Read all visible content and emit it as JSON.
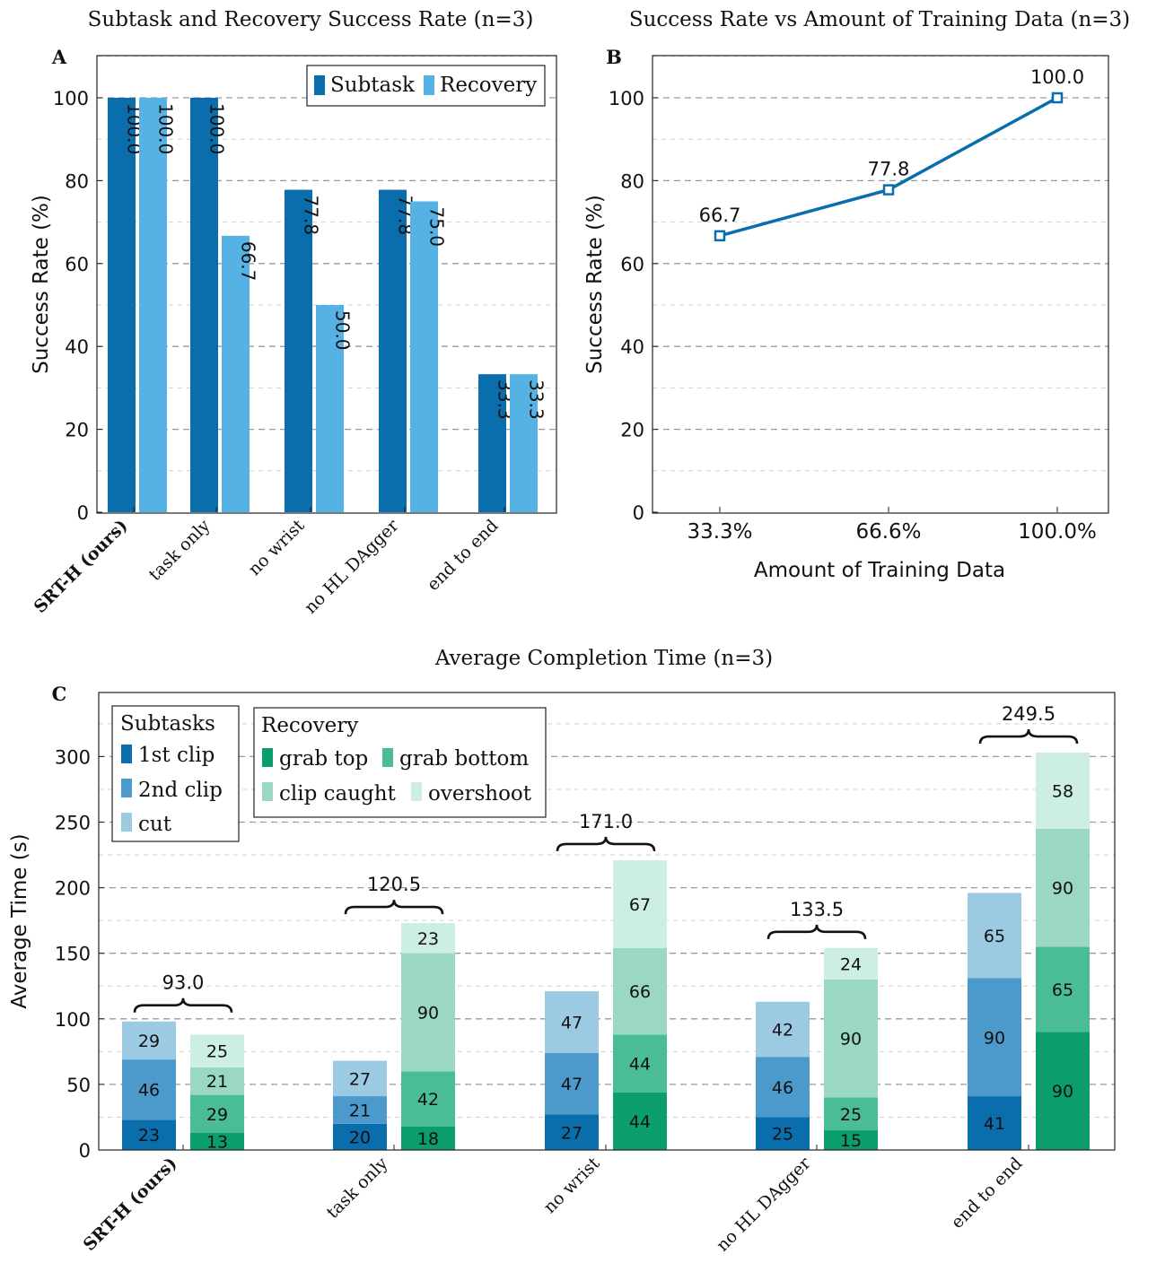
{
  "chart_data": [
    {
      "panel": "A",
      "type": "bar",
      "title": "Subtask and Recovery Success Rate (n=3)",
      "ylabel": "Success Rate (%)",
      "ylim": [
        0,
        110
      ],
      "yticks": [
        0,
        20,
        40,
        60,
        80,
        100
      ],
      "grid": true,
      "legend": "top-right",
      "categories": [
        "SRT-H (ours)",
        "task only",
        "no wrist",
        "no HL DAgger",
        "end to end"
      ],
      "series": [
        {
          "name": "Subtask",
          "color": "#0a6eac",
          "values": [
            100.0,
            100.0,
            77.8,
            77.8,
            33.3
          ],
          "labels": [
            "100.0",
            "100.0",
            "77.8",
            "77.8",
            "33.3"
          ]
        },
        {
          "name": "Recovery",
          "color": "#56b2e4",
          "values": [
            100.0,
            66.7,
            50.0,
            75.0,
            33.3
          ],
          "labels": [
            "100.0",
            "66.7",
            "50.0",
            "75.0",
            "33.3"
          ]
        }
      ]
    },
    {
      "panel": "B",
      "type": "line",
      "title": "Success Rate vs Amount of Training Data (n=3)",
      "xlabel": "Amount of Training Data",
      "ylabel": "Success Rate (%)",
      "ylim": [
        0,
        110
      ],
      "yticks": [
        0,
        20,
        40,
        60,
        80,
        100
      ],
      "grid": true,
      "x": [
        "33.3%",
        "66.6%",
        "100.0%"
      ],
      "series": [
        {
          "color": "#0a6eac",
          "values": [
            66.7,
            77.8,
            100.0
          ],
          "labels": [
            "66.7",
            "77.8",
            "100.0"
          ]
        }
      ]
    },
    {
      "panel": "C",
      "type": "bar",
      "title": "Average Completion Time (n=3)",
      "ylabel": "Average Time (s)",
      "ylim": [
        0,
        340
      ],
      "yticks": [
        0,
        50,
        100,
        150,
        200,
        250,
        300
      ],
      "grid": true,
      "categories": [
        "SRT-H (ours)",
        "task only",
        "no wrist",
        "no HL DAgger",
        "end to end"
      ],
      "totals": [
        "93.0",
        "120.5",
        "171.0",
        "133.5",
        "249.5"
      ],
      "legend_titles": {
        "subtasks": "Subtasks",
        "recovery": "Recovery"
      },
      "subtask_segments": [
        {
          "name": "1st clip",
          "color": "#0a6eac",
          "values": [
            23,
            20,
            27,
            25,
            41
          ]
        },
        {
          "name": "2nd clip",
          "color": "#4b9acb",
          "values": [
            46,
            21,
            47,
            46,
            90
          ]
        },
        {
          "name": "cut",
          "color": "#9dcae3",
          "values": [
            29,
            27,
            47,
            42,
            65
          ]
        }
      ],
      "recovery_segments": [
        {
          "name": "grab top",
          "color": "#0b9e6c",
          "values": [
            13,
            18,
            44,
            15,
            90
          ]
        },
        {
          "name": "grab bottom",
          "color": "#4bbc98",
          "values": [
            29,
            42,
            44,
            25,
            65
          ]
        },
        {
          "name": "clip caught",
          "color": "#9ad8c3",
          "values": [
            21,
            90,
            66,
            90,
            90
          ]
        },
        {
          "name": "overshoot",
          "color": "#cdeee2",
          "values": [
            25,
            23,
            67,
            24,
            58
          ]
        }
      ]
    }
  ],
  "panel_letters": [
    "A",
    "B",
    "C"
  ]
}
